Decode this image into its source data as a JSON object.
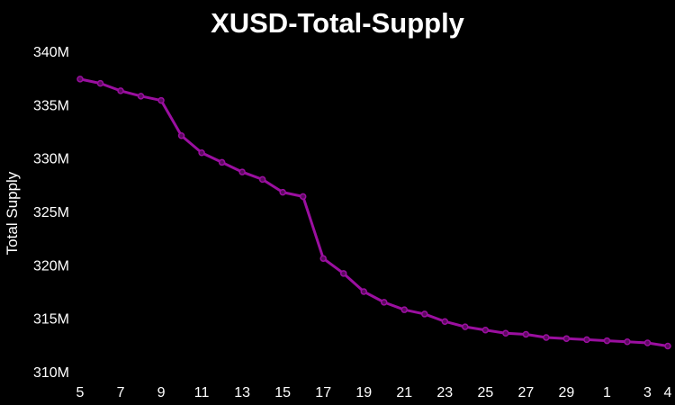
{
  "chart_data": {
    "type": "line",
    "title": "XUSD-Total-Supply",
    "xlabel": "",
    "ylabel": "Total Supply",
    "x": [
      "5",
      "6",
      "7",
      "8",
      "9",
      "10",
      "11",
      "12",
      "13",
      "14",
      "15",
      "16",
      "17",
      "18",
      "19",
      "20",
      "21",
      "22",
      "23",
      "24",
      "25",
      "26",
      "27",
      "28",
      "29",
      "30",
      "1",
      "2",
      "3",
      "4"
    ],
    "x_tick_labels": [
      "5",
      "7",
      "9",
      "11",
      "13",
      "15",
      "17",
      "19",
      "21",
      "23",
      "25",
      "27",
      "29",
      "1",
      "3",
      "4"
    ],
    "y_tick_labels": [
      "310M",
      "315M",
      "320M",
      "325M",
      "330M",
      "335M",
      "340M"
    ],
    "y_ticks": [
      310,
      315,
      320,
      325,
      330,
      335,
      340
    ],
    "ylim": [
      310,
      340
    ],
    "y_unit": "M",
    "grid": false,
    "legend": "none",
    "series": [
      {
        "values": [
          337.4,
          337.0,
          336.3,
          335.8,
          335.4,
          332.1,
          330.5,
          329.6,
          328.7,
          328.0,
          326.8,
          326.4,
          320.6,
          319.2,
          317.5,
          316.5,
          315.8,
          315.4,
          314.7,
          314.2,
          313.9,
          313.6,
          313.5,
          313.2,
          313.1,
          313.0,
          312.9,
          312.8,
          312.7,
          312.4
        ],
        "color": "#9b0fa0"
      }
    ],
    "colors": {
      "background": "#000000",
      "text": "#ffffff",
      "line": "#9b0fa0",
      "marker_fill": "#5a0a5e"
    }
  }
}
